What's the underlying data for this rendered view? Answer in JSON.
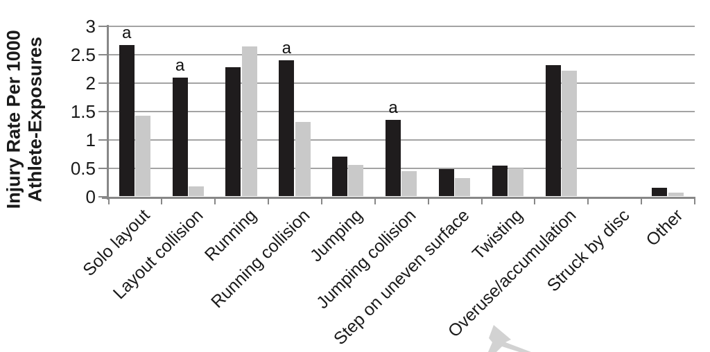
{
  "chart_data": {
    "type": "bar",
    "title": "",
    "xlabel": "",
    "ylabel": "Injury Rate Per 1000\nAthlete-Exposures",
    "ylim": [
      0,
      3
    ],
    "yticks": [
      0,
      0.5,
      1,
      1.5,
      2,
      2.5,
      3
    ],
    "ytick_labels": [
      "0",
      "0.5",
      "1",
      "1.5",
      "2",
      "2.5",
      "3"
    ],
    "grid": true,
    "legend_position": "none",
    "categories": [
      "Solo layout",
      "Layout collision",
      "Running",
      "Running collision",
      "Jumping",
      "Jumping collision",
      "Step on uneven surface",
      "Twisting",
      "Overuse/accumulation",
      "Struck by disc",
      "Other"
    ],
    "series": [
      {
        "color_name": "black",
        "color": "#1f1c1d",
        "values": [
          2.67,
          2.1,
          2.28,
          2.4,
          0.7,
          1.35,
          0.48,
          0.54,
          2.32,
          0,
          0.15
        ]
      },
      {
        "color_name": "gray",
        "color": "#c9c9c9",
        "values": [
          1.42,
          0.18,
          2.64,
          1.31,
          0.55,
          0.44,
          0.32,
          0.49,
          2.22,
          0,
          0.07
        ]
      }
    ],
    "significance": {
      "marker": "a",
      "on_series": "black",
      "categories": [
        "Solo layout",
        "Layout collision",
        "Running collision",
        "Jumping collision"
      ]
    }
  },
  "colors": {
    "gridline": "#a3a3a3",
    "axis": "#878787",
    "text": "#1a1a1a",
    "cursor": "#d2d2d2"
  }
}
